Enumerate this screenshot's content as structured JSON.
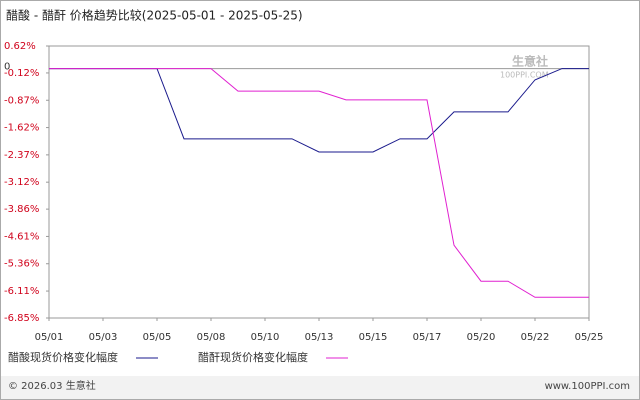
{
  "chart_data": {
    "type": "line",
    "title": "醋酸 - 醋酐 价格趋势比较(2025-05-01 - 2025-05-25)",
    "categories": [
      "05/01",
      null,
      "05/03",
      null,
      "05/05",
      null,
      "05/08",
      null,
      "05/10",
      null,
      "05/13",
      null,
      "05/15",
      null,
      "05/17",
      null,
      "05/20",
      null,
      "05/22",
      null,
      "05/25"
    ],
    "series": [
      {
        "name": "醋酸现货价格变化幅度",
        "color": "#1a1a8c",
        "values": [
          0,
          0,
          0,
          0,
          0,
          -1.93,
          -1.93,
          -1.93,
          -1.93,
          -1.93,
          -2.29,
          -2.29,
          -2.29,
          -1.93,
          -1.93,
          -1.19,
          -1.19,
          -1.19,
          -0.31,
          0,
          0
        ]
      },
      {
        "name": "醋酐现货价格变化幅度",
        "color": "#e020d0",
        "values": [
          0,
          0,
          0,
          0,
          0,
          0,
          0,
          -0.62,
          -0.62,
          -0.62,
          -0.62,
          -0.86,
          -0.86,
          -0.86,
          -0.86,
          -4.85,
          -5.84,
          -5.84,
          -6.28,
          -6.28,
          -6.28
        ]
      }
    ],
    "ylim": [
      -6.85,
      0.62
    ],
    "yticks": [
      {
        "value": 0.62,
        "label": "0.62%"
      },
      {
        "value": -0.12,
        "label": "-0.12%"
      },
      {
        "value": -0.87,
        "label": "-0.87%"
      },
      {
        "value": -1.62,
        "label": "-1.62%"
      },
      {
        "value": -2.37,
        "label": "-2.37%"
      },
      {
        "value": -3.12,
        "label": "-3.12%"
      },
      {
        "value": -3.86,
        "label": "-3.86%"
      },
      {
        "value": -4.61,
        "label": "-4.61%"
      },
      {
        "value": -5.36,
        "label": "-5.36%"
      },
      {
        "value": -6.11,
        "label": "-6.11%"
      },
      {
        "value": -6.85,
        "label": "-6.85%"
      }
    ],
    "zero_marker": {
      "value": 0,
      "label": "0"
    },
    "watermark": [
      "生意社",
      "100PPI.COM"
    ],
    "footer_left": "© 2026.03 生意社",
    "footer_right": "www.100PPI.com"
  }
}
